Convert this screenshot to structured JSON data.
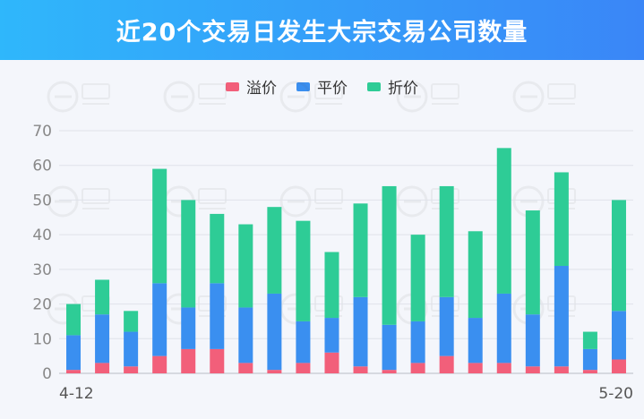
{
  "header": {
    "title": "近20个交易日发生大宗交易公司数量"
  },
  "chart_data": {
    "type": "bar",
    "stacked": true,
    "categories": [
      "4-12",
      "",
      "",
      "",
      "",
      "",
      "",
      "",
      "",
      "",
      "",
      "",
      "",
      "",
      "",
      "",
      "",
      "",
      "",
      "5-20"
    ],
    "x_tick_labels": [
      "4-12",
      "5-20"
    ],
    "series": [
      {
        "name": "溢价",
        "color": "#f25f7a",
        "values": [
          1,
          3,
          2,
          5,
          7,
          7,
          3,
          1,
          3,
          6,
          2,
          1,
          3,
          5,
          3,
          3,
          2,
          2,
          1,
          4
        ]
      },
      {
        "name": "平价",
        "color": "#3a8ff0",
        "values": [
          10,
          14,
          10,
          21,
          12,
          19,
          16,
          22,
          12,
          10,
          20,
          13,
          12,
          17,
          13,
          20,
          15,
          29,
          6,
          14
        ]
      },
      {
        "name": "折价",
        "color": "#2ecc96",
        "values": [
          9,
          10,
          6,
          33,
          31,
          20,
          24,
          25,
          29,
          19,
          27,
          40,
          25,
          32,
          25,
          42,
          30,
          27,
          5,
          32
        ]
      }
    ],
    "ylim": [
      0,
      70
    ],
    "yticks": [
      0,
      10,
      20,
      30,
      40,
      50,
      60,
      70
    ],
    "grid": true,
    "legend_position": "top-center"
  }
}
